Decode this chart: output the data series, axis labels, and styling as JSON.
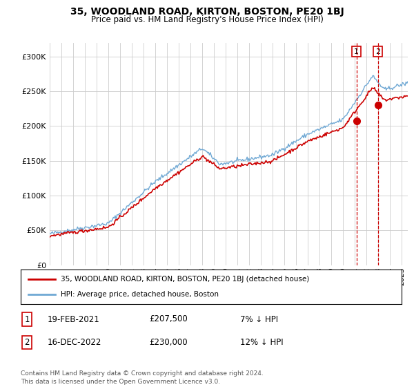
{
  "title": "35, WOODLAND ROAD, KIRTON, BOSTON, PE20 1BJ",
  "subtitle": "Price paid vs. HM Land Registry's House Price Index (HPI)",
  "legend_line1": "35, WOODLAND ROAD, KIRTON, BOSTON, PE20 1BJ (detached house)",
  "legend_line2": "HPI: Average price, detached house, Boston",
  "footer": "Contains HM Land Registry data © Crown copyright and database right 2024.\nThis data is licensed under the Open Government Licence v3.0.",
  "sale1_label": "1",
  "sale1_date": "19-FEB-2021",
  "sale1_price": "£207,500",
  "sale1_hpi": "7% ↓ HPI",
  "sale2_label": "2",
  "sale2_date": "16-DEC-2022",
  "sale2_price": "£230,000",
  "sale2_hpi": "12% ↓ HPI",
  "sale1_year": 2021.13,
  "sale1_value": 207500,
  "sale2_year": 2022.96,
  "sale2_value": 230000,
  "hpi_color": "#6fa8d4",
  "sales_color": "#cc0000",
  "background_color": "#ffffff",
  "grid_color": "#cccccc",
  "ylim": [
    0,
    320000
  ],
  "xlim_start": 1995,
  "xlim_end": 2025.5
}
